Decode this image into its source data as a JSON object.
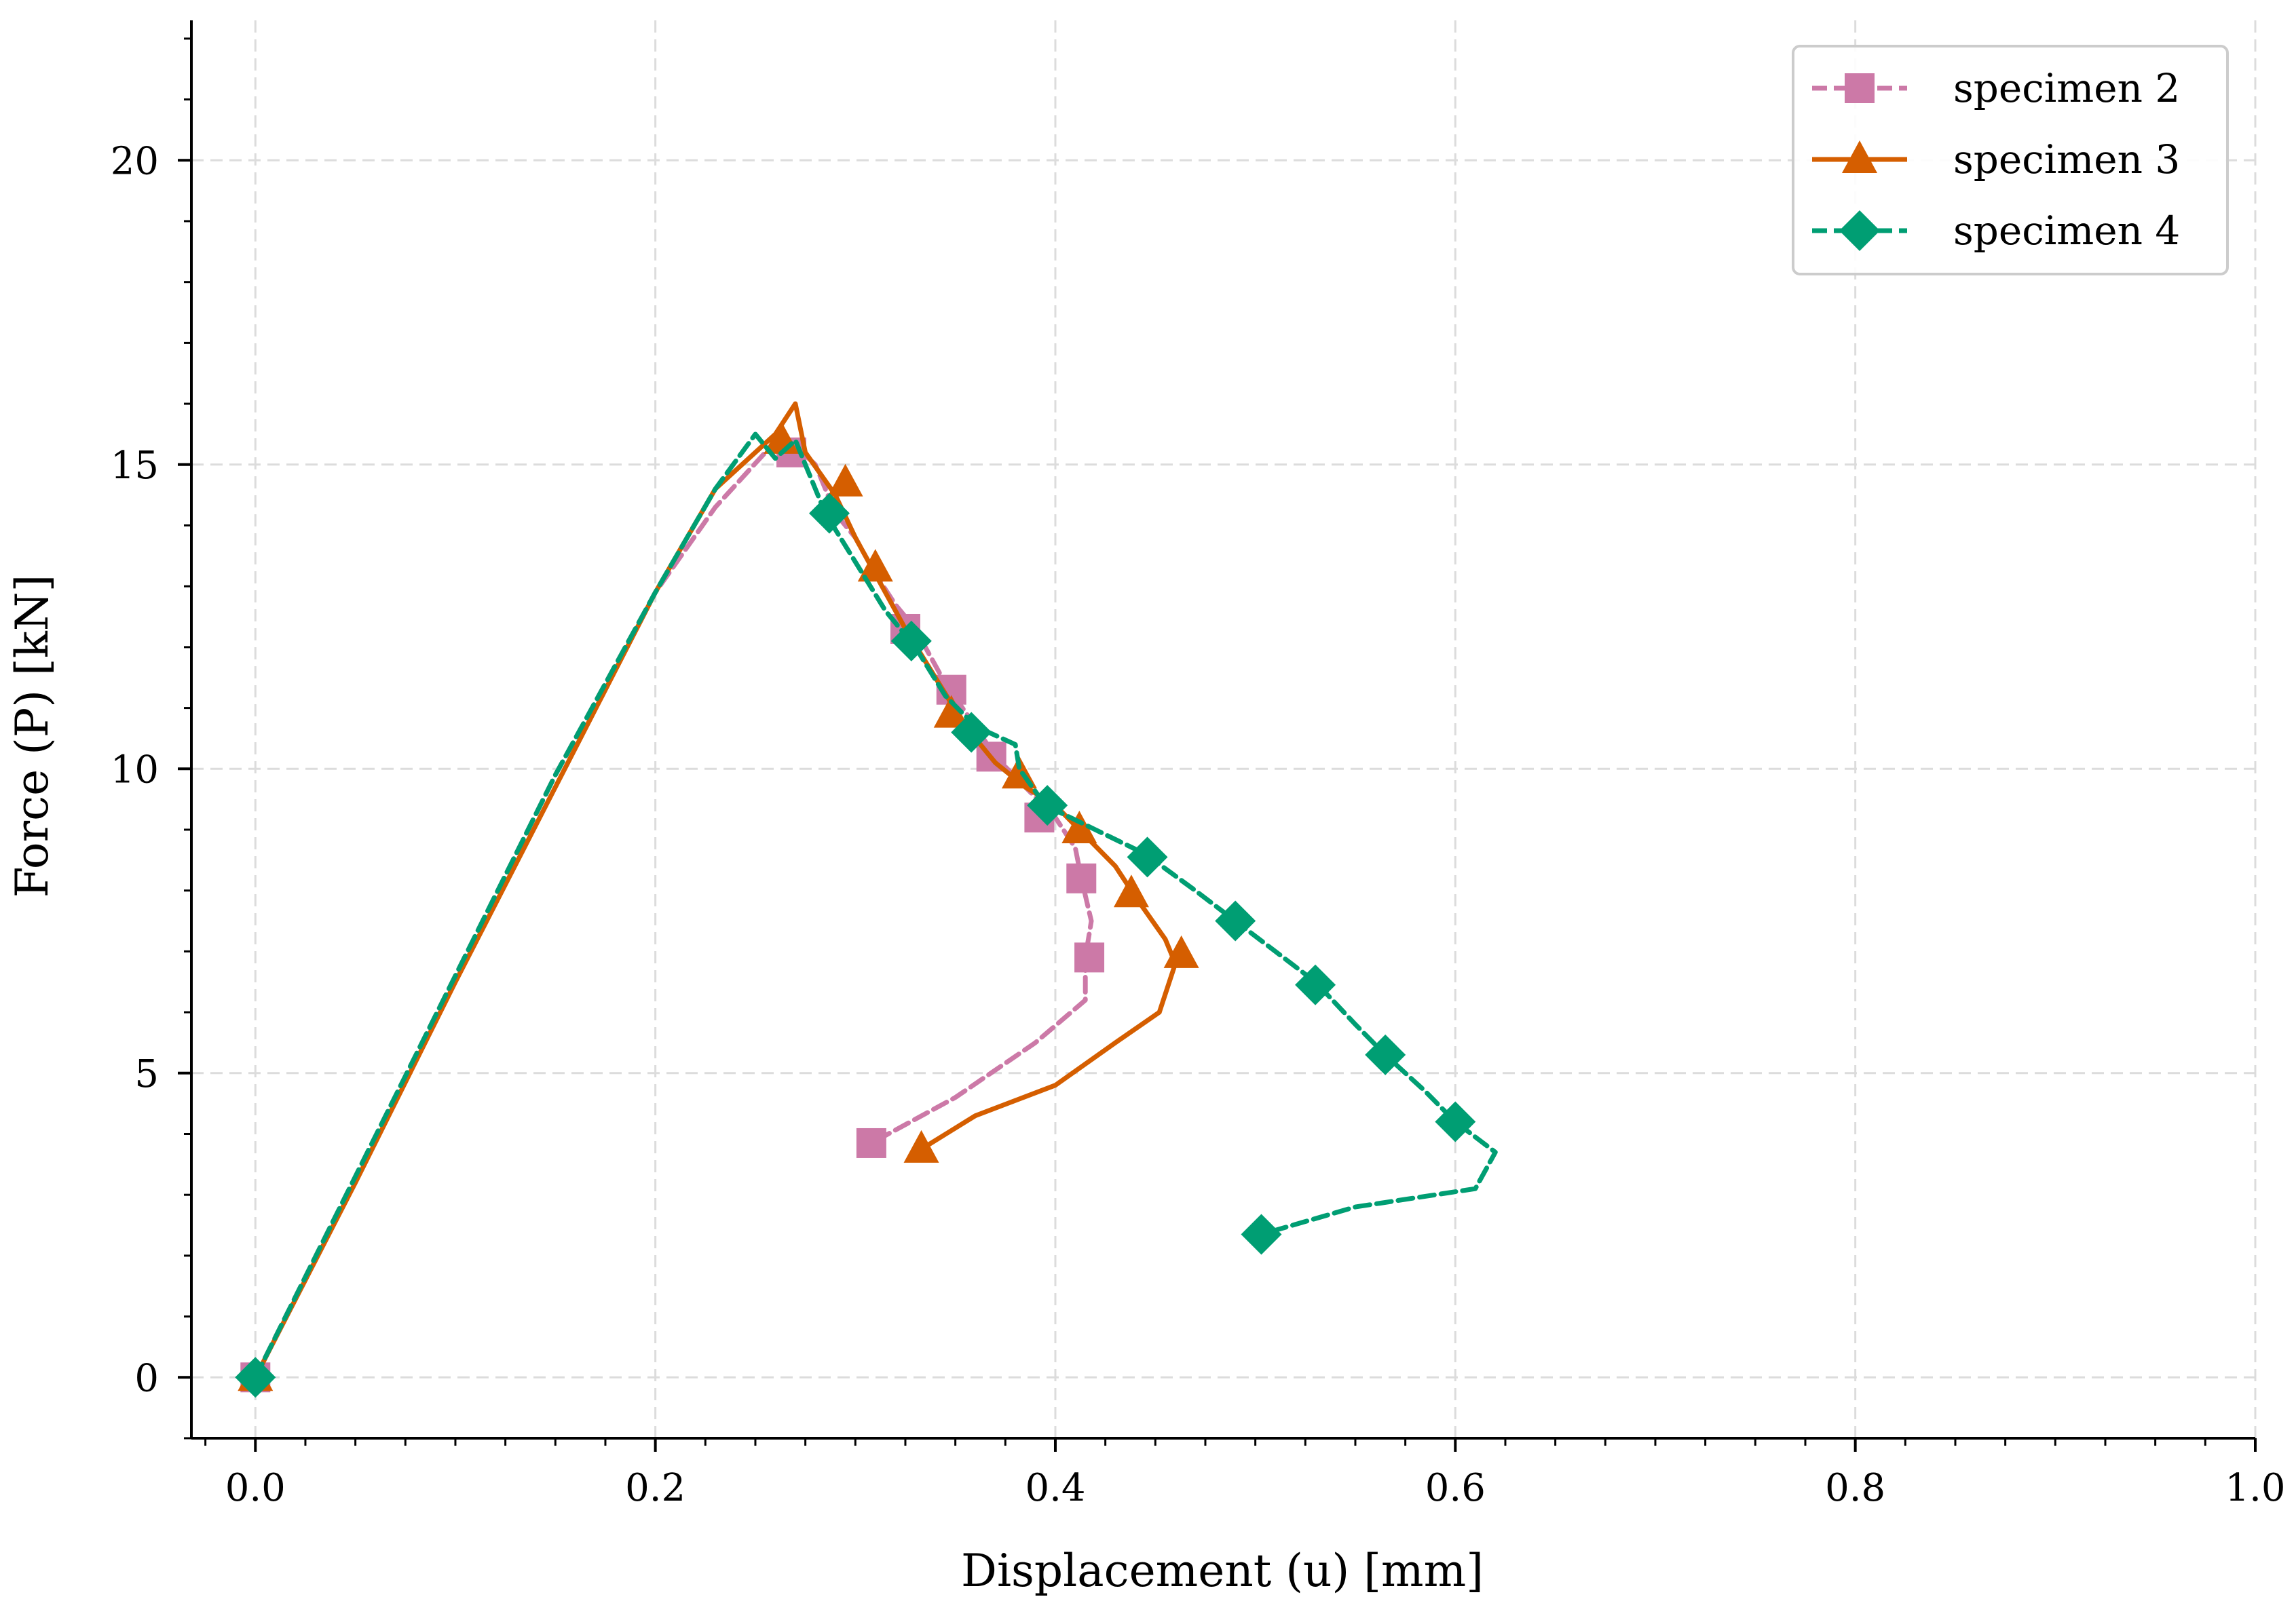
{
  "chart_data": {
    "type": "line",
    "xlabel": "Displacement (u) [mm]",
    "ylabel": "Force (P) [kN]",
    "xlim": [
      -0.032,
      1.0
    ],
    "ylim": [
      -1.0,
      22.3
    ],
    "xticks": [
      0.0,
      0.2,
      0.4,
      0.6,
      0.8,
      1.0
    ],
    "xtick_labels": [
      "0.0",
      "0.2",
      "0.4",
      "0.6",
      "0.8",
      "1.0"
    ],
    "yticks": [
      0,
      5,
      10,
      15,
      20
    ],
    "ytick_labels": [
      "0",
      "5",
      "10",
      "15",
      "20"
    ],
    "grid": true,
    "legend_position": "top-right",
    "series": [
      {
        "name": "specimen 2",
        "color": "#cc79a7",
        "line_style": "dashed",
        "marker": "square",
        "points": [
          [
            0.0,
            0.0
          ],
          [
            0.05,
            3.3
          ],
          [
            0.1,
            6.6
          ],
          [
            0.15,
            9.9
          ],
          [
            0.2,
            12.9
          ],
          [
            0.23,
            14.3
          ],
          [
            0.255,
            15.2
          ],
          [
            0.27,
            15.3
          ],
          [
            0.28,
            15.0
          ],
          [
            0.29,
            14.2
          ],
          [
            0.3,
            13.8
          ],
          [
            0.31,
            13.2
          ],
          [
            0.32,
            12.7
          ],
          [
            0.33,
            12.3
          ],
          [
            0.345,
            11.4
          ],
          [
            0.36,
            10.7
          ],
          [
            0.37,
            10.2
          ],
          [
            0.385,
            9.7
          ],
          [
            0.4,
            9.2
          ],
          [
            0.41,
            8.7
          ],
          [
            0.413,
            8.2
          ],
          [
            0.418,
            7.5
          ],
          [
            0.415,
            6.9
          ],
          [
            0.415,
            6.2
          ],
          [
            0.39,
            5.5
          ],
          [
            0.35,
            4.6
          ],
          [
            0.308,
            3.85
          ]
        ],
        "marker_points": [
          [
            0.0,
            0.0
          ],
          [
            0.268,
            15.2
          ],
          [
            0.325,
            12.3
          ],
          [
            0.348,
            11.3
          ],
          [
            0.368,
            10.2
          ],
          [
            0.392,
            9.2
          ],
          [
            0.413,
            8.2
          ],
          [
            0.417,
            6.9
          ],
          [
            0.308,
            3.85
          ]
        ]
      },
      {
        "name": "specimen 3",
        "color": "#d55e00",
        "line_style": "solid",
        "marker": "triangle",
        "points": [
          [
            0.0,
            0.0
          ],
          [
            0.05,
            3.2
          ],
          [
            0.1,
            6.5
          ],
          [
            0.15,
            9.7
          ],
          [
            0.2,
            12.9
          ],
          [
            0.23,
            14.6
          ],
          [
            0.26,
            15.5
          ],
          [
            0.27,
            16.0
          ],
          [
            0.275,
            15.2
          ],
          [
            0.29,
            14.5
          ],
          [
            0.3,
            13.8
          ],
          [
            0.31,
            13.2
          ],
          [
            0.325,
            12.3
          ],
          [
            0.34,
            11.5
          ],
          [
            0.355,
            10.7
          ],
          [
            0.37,
            10.1
          ],
          [
            0.385,
            9.7
          ],
          [
            0.4,
            9.4
          ],
          [
            0.415,
            8.9
          ],
          [
            0.43,
            8.4
          ],
          [
            0.44,
            7.9
          ],
          [
            0.455,
            7.2
          ],
          [
            0.46,
            6.8
          ],
          [
            0.452,
            6.0
          ],
          [
            0.43,
            5.5
          ],
          [
            0.4,
            4.8
          ],
          [
            0.36,
            4.3
          ],
          [
            0.333,
            3.75
          ]
        ],
        "marker_points": [
          [
            0.0,
            0.0
          ],
          [
            0.263,
            15.4
          ],
          [
            0.295,
            14.7
          ],
          [
            0.31,
            13.3
          ],
          [
            0.348,
            10.9
          ],
          [
            0.382,
            9.9
          ],
          [
            0.412,
            9.0
          ],
          [
            0.438,
            7.95
          ],
          [
            0.463,
            6.95
          ],
          [
            0.333,
            3.75
          ]
        ]
      },
      {
        "name": "specimen 4",
        "color": "#009e73",
        "line_style": "dashed",
        "marker": "diamond",
        "points": [
          [
            0.0,
            0.0
          ],
          [
            0.05,
            3.3
          ],
          [
            0.1,
            6.6
          ],
          [
            0.15,
            9.9
          ],
          [
            0.2,
            12.9
          ],
          [
            0.23,
            14.6
          ],
          [
            0.25,
            15.5
          ],
          [
            0.26,
            15.1
          ],
          [
            0.27,
            15.4
          ],
          [
            0.285,
            14.2
          ],
          [
            0.3,
            13.4
          ],
          [
            0.315,
            12.6
          ],
          [
            0.33,
            12.0
          ],
          [
            0.345,
            11.2
          ],
          [
            0.36,
            10.7
          ],
          [
            0.38,
            10.4
          ],
          [
            0.382,
            10.0
          ],
          [
            0.395,
            9.4
          ],
          [
            0.42,
            9.0
          ],
          [
            0.445,
            8.6
          ],
          [
            0.47,
            8.0
          ],
          [
            0.49,
            7.5
          ],
          [
            0.51,
            7.0
          ],
          [
            0.53,
            6.5
          ],
          [
            0.55,
            5.8
          ],
          [
            0.565,
            5.3
          ],
          [
            0.585,
            4.7
          ],
          [
            0.6,
            4.2
          ],
          [
            0.62,
            3.7
          ],
          [
            0.61,
            3.1
          ],
          [
            0.55,
            2.8
          ],
          [
            0.503,
            2.35
          ]
        ],
        "marker_points": [
          [
            0.0,
            0.0
          ],
          [
            0.287,
            14.2
          ],
          [
            0.328,
            12.1
          ],
          [
            0.358,
            10.6
          ],
          [
            0.396,
            9.4
          ],
          [
            0.446,
            8.55
          ],
          [
            0.49,
            7.5
          ],
          [
            0.53,
            6.45
          ],
          [
            0.565,
            5.3
          ],
          [
            0.6,
            4.2
          ],
          [
            0.503,
            2.35
          ]
        ]
      }
    ]
  }
}
